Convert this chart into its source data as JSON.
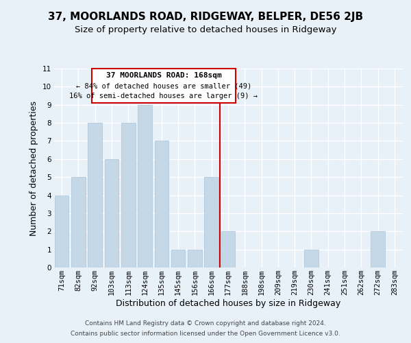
{
  "title": "37, MOORLANDS ROAD, RIDGEWAY, BELPER, DE56 2JB",
  "subtitle": "Size of property relative to detached houses in Ridgeway",
  "xlabel": "Distribution of detached houses by size in Ridgeway",
  "ylabel": "Number of detached properties",
  "bar_labels": [
    "71sqm",
    "82sqm",
    "92sqm",
    "103sqm",
    "113sqm",
    "124sqm",
    "135sqm",
    "145sqm",
    "156sqm",
    "166sqm",
    "177sqm",
    "188sqm",
    "198sqm",
    "209sqm",
    "219sqm",
    "230sqm",
    "241sqm",
    "251sqm",
    "262sqm",
    "272sqm",
    "283sqm"
  ],
  "bar_values": [
    4,
    5,
    8,
    6,
    8,
    9,
    7,
    1,
    1,
    5,
    2,
    0,
    0,
    0,
    0,
    1,
    0,
    0,
    0,
    2,
    0
  ],
  "bar_color": "#c5d8e8",
  "bar_edge_color": "#a8c4d8",
  "highlight_index": 9,
  "ylim": [
    0,
    11
  ],
  "yticks": [
    0,
    1,
    2,
    3,
    4,
    5,
    6,
    7,
    8,
    9,
    10,
    11
  ],
  "annotation_title": "37 MOORLANDS ROAD: 168sqm",
  "annotation_line1": "← 84% of detached houses are smaller (49)",
  "annotation_line2": "16% of semi-detached houses are larger (9) →",
  "annotation_box_color": "#ffffff",
  "annotation_border_color": "#cc0000",
  "vline_color": "#cc0000",
  "footer_line1": "Contains HM Land Registry data © Crown copyright and database right 2024.",
  "footer_line2": "Contains public sector information licensed under the Open Government Licence v3.0.",
  "bg_color": "#e8f0f8",
  "plot_bg_color": "#e8f0f8",
  "grid_color": "#ffffff",
  "title_fontsize": 11,
  "subtitle_fontsize": 9.5,
  "axis_label_fontsize": 9,
  "tick_fontsize": 7.5,
  "annotation_title_fontsize": 8,
  "annotation_text_fontsize": 7.5,
  "footer_fontsize": 6.5
}
